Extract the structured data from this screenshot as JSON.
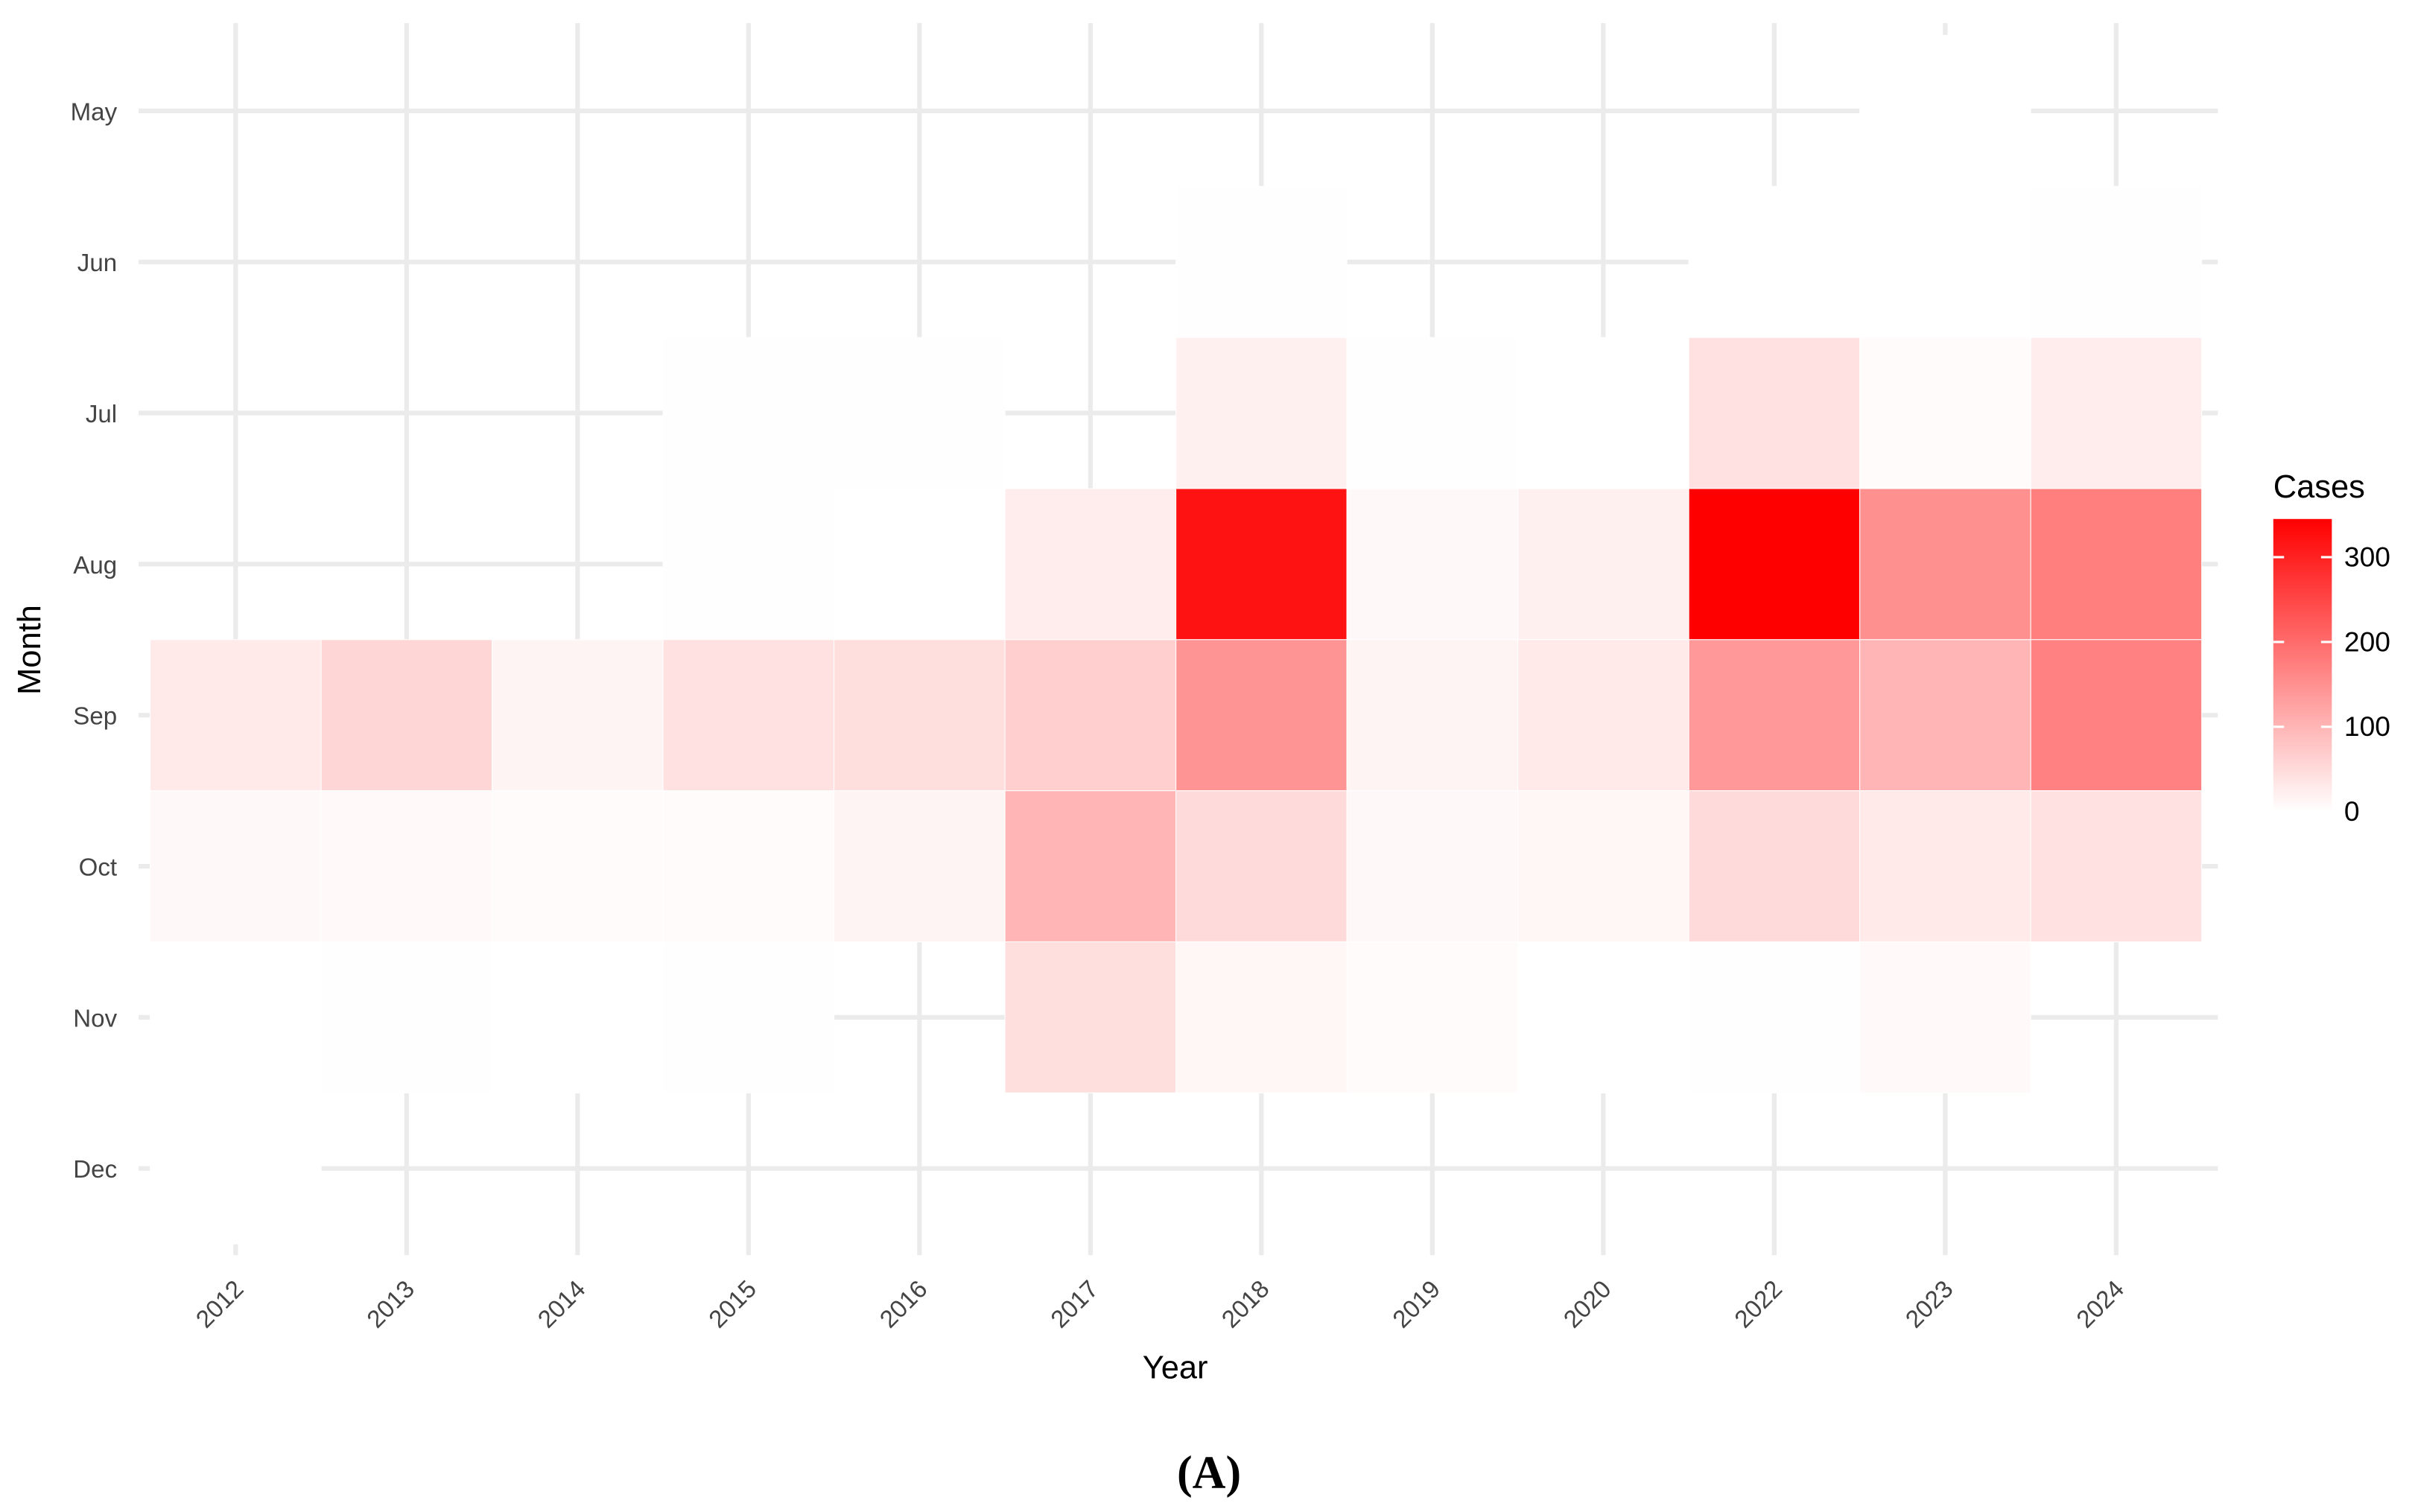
{
  "chart_data": {
    "type": "heatmap",
    "x_label": "Year",
    "y_label": "Month",
    "caption": "(A)",
    "x": [
      "2012",
      "2013",
      "2014",
      "2015",
      "2016",
      "2017",
      "2018",
      "2019",
      "2020",
      "2022",
      "2023",
      "2024"
    ],
    "y": [
      "May",
      "Jun",
      "Jul",
      "Aug",
      "Sep",
      "Oct",
      "Nov",
      "Dec"
    ],
    "values": [
      [
        null,
        null,
        null,
        null,
        null,
        null,
        null,
        null,
        null,
        null,
        0,
        null
      ],
      [
        null,
        null,
        null,
        null,
        null,
        null,
        2,
        null,
        null,
        0,
        0,
        2
      ],
      [
        null,
        null,
        null,
        1,
        1,
        null,
        20,
        2,
        0,
        40,
        5,
        25
      ],
      [
        null,
        null,
        null,
        1,
        0,
        25,
        320,
        10,
        20,
        345,
        150,
        175
      ],
      [
        30,
        55,
        15,
        40,
        45,
        65,
        145,
        15,
        30,
        140,
        100,
        170
      ],
      [
        10,
        8,
        5,
        5,
        15,
        100,
        50,
        10,
        12,
        50,
        30,
        40
      ],
      [
        0,
        2,
        0,
        1,
        null,
        45,
        12,
        5,
        0,
        2,
        8,
        null
      ],
      [
        0,
        null,
        null,
        null,
        null,
        null,
        null,
        null,
        null,
        null,
        null,
        null
      ]
    ],
    "legend_title": "Cases",
    "colorlim": [
      0,
      345
    ],
    "colorticks": [
      0,
      100,
      200,
      300
    ],
    "color_low": "#ffffff",
    "color_high": "#ff0000",
    "grid": true
  }
}
